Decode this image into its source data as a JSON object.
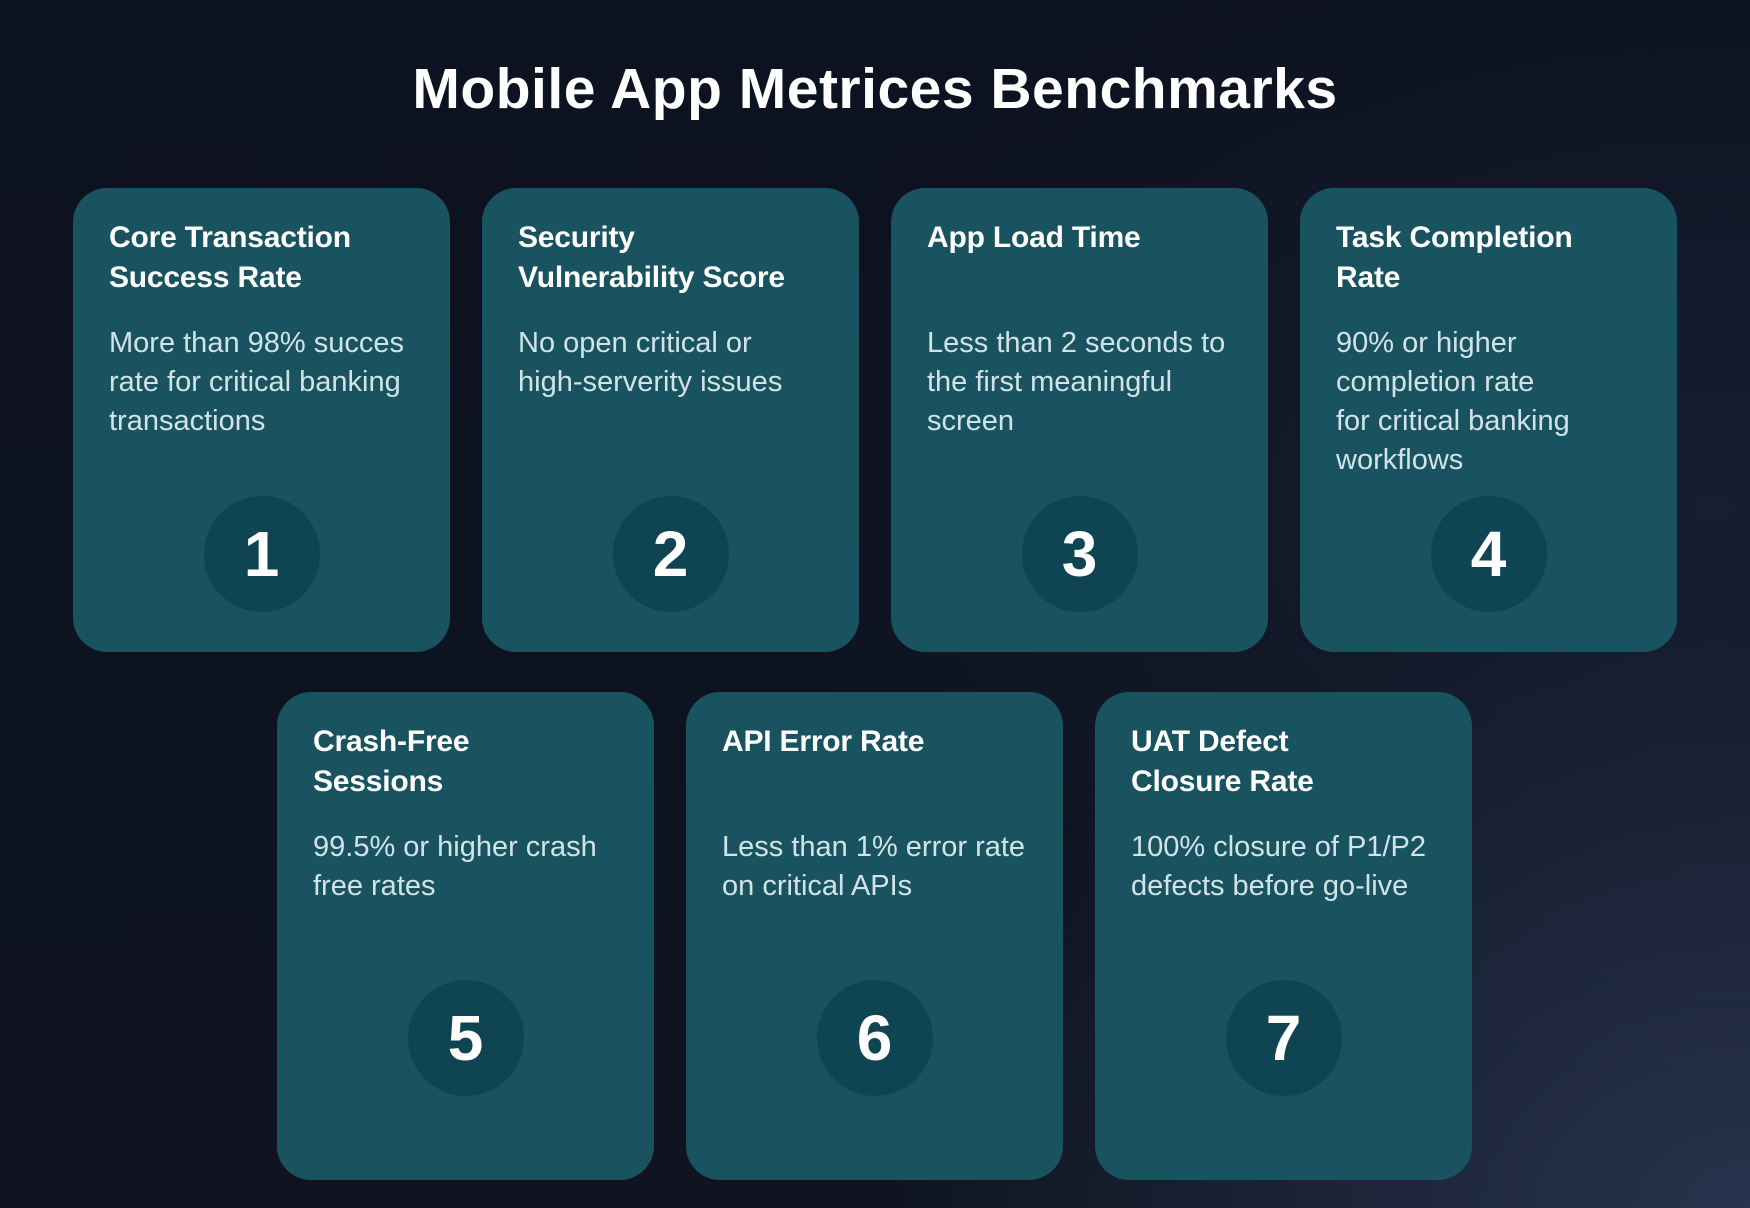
{
  "page": {
    "title": "Mobile App Metrices Benchmarks"
  },
  "cards": [
    {
      "number": "1",
      "row": 1,
      "title_lines": [
        "Core Transaction",
        "Success Rate"
      ],
      "body_lines": [
        "More than 98% succes",
        "rate for critical banking",
        "transactions"
      ]
    },
    {
      "number": "2",
      "row": 1,
      "title_lines": [
        "Security",
        "Vulnerability Score"
      ],
      "body_lines": [
        "No open critical or",
        "high-serverity issues"
      ]
    },
    {
      "number": "3",
      "row": 1,
      "title_lines": [
        "App Load Time"
      ],
      "body_lines": [
        "Less than 2 seconds to",
        "the first meaningful",
        "screen"
      ]
    },
    {
      "number": "4",
      "row": 1,
      "title_lines": [
        "Task Completion",
        "Rate"
      ],
      "body_lines": [
        "90% or higher",
        "completion rate",
        "for critical banking",
        "workflows"
      ]
    },
    {
      "number": "5",
      "row": 2,
      "title_lines": [
        "Crash-Free",
        "Sessions"
      ],
      "body_lines": [
        "99.5% or higher crash",
        "free rates"
      ]
    },
    {
      "number": "6",
      "row": 2,
      "title_lines": [
        "API Error Rate"
      ],
      "body_lines": [
        "Less than 1% error rate",
        "on critical APIs"
      ]
    },
    {
      "number": "7",
      "row": 2,
      "title_lines": [
        "UAT Defect",
        "Closure Rate"
      ],
      "body_lines": [
        "100% closure of P1/P2",
        "defects before go-live"
      ]
    }
  ],
  "colors": {
    "background": "#0f1420",
    "card": "#18535f",
    "circle": "#0f4553",
    "heading": "#ffffff",
    "body_text": "#d2e3e8"
  }
}
